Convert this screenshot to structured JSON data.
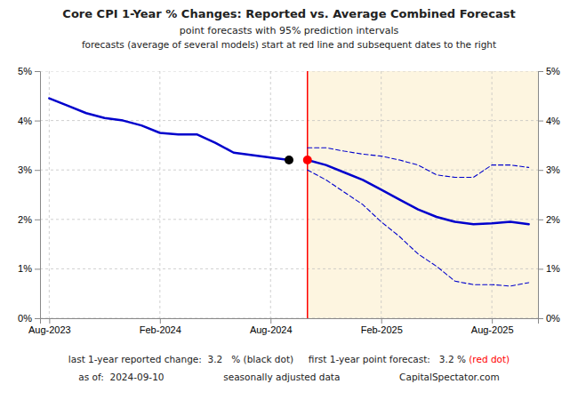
{
  "chart_data": {
    "type": "line",
    "title": "Core CPI 1-Year % Changes: Reported vs. Average Combined Forecast",
    "subtitle": [
      "point forecasts with 95% prediction intervals",
      "forecasts (average of several models) start at red line and subsequent dates to the right"
    ],
    "series": [
      {
        "type": "line",
        "line_style": "solid",
        "color": "#0000cc",
        "x": [
          0,
          1,
          2,
          3,
          4,
          5,
          6,
          7,
          8,
          9,
          10,
          11,
          12,
          13
        ],
        "values": [
          4.45,
          4.3,
          4.15,
          4.05,
          4.0,
          3.9,
          3.75,
          3.72,
          3.72,
          3.55,
          3.35,
          3.3,
          3.25,
          3.2
        ]
      },
      {
        "type": "line",
        "line_style": "solid",
        "color": "#0000cc",
        "x": [
          14,
          15,
          16,
          17,
          18,
          19,
          20,
          21,
          22,
          23,
          24,
          25,
          26
        ],
        "values": [
          3.2,
          3.1,
          2.95,
          2.8,
          2.6,
          2.4,
          2.2,
          2.05,
          1.95,
          1.9,
          1.92,
          1.95,
          1.9
        ]
      },
      {
        "type": "line",
        "line_style": "dashed",
        "color": "#0000cc",
        "x": [
          14,
          15,
          16,
          17,
          18,
          19,
          20,
          21,
          22,
          23,
          24,
          25,
          26
        ],
        "values": [
          3.45,
          3.45,
          3.38,
          3.32,
          3.28,
          3.2,
          3.1,
          2.9,
          2.85,
          2.85,
          3.1,
          3.1,
          3.05
        ]
      },
      {
        "type": "line",
        "line_style": "dashed",
        "color": "#0000cc",
        "x": [
          14,
          15,
          16,
          17,
          18,
          19,
          20,
          21,
          22,
          23,
          24,
          25,
          26
        ],
        "values": [
          3.0,
          2.8,
          2.55,
          2.3,
          1.95,
          1.65,
          1.3,
          1.05,
          0.75,
          0.68,
          0.68,
          0.65,
          0.72
        ]
      },
      {
        "type": "scatter",
        "marker": "circle",
        "color": "black",
        "x": [
          13
        ],
        "values": [
          3.2
        ]
      },
      {
        "type": "scatter",
        "marker": "circle",
        "color": "red",
        "x": [
          14
        ],
        "values": [
          3.2
        ]
      }
    ],
    "shaded_regions": [
      {
        "x": [
          14,
          26.5
        ],
        "color": "#fdf5e0"
      }
    ],
    "reference_lines": [
      {
        "x": 14,
        "color": "red"
      }
    ],
    "xlim": [
      -0.5,
      26.5
    ],
    "xticks": [
      {
        "value": 0,
        "label": "Aug-2023"
      },
      {
        "value": 6,
        "label": "Feb-2024"
      },
      {
        "value": 12,
        "label": "Aug-2024"
      },
      {
        "value": 18,
        "label": "Feb-2025"
      },
      {
        "value": 24,
        "label": "Aug-2025"
      }
    ],
    "ylim": [
      0,
      5.0
    ],
    "yticks": [
      {
        "value": 0,
        "label": "0%"
      },
      {
        "value": 1,
        "label": "1%"
      },
      {
        "value": 2,
        "label": "2%"
      },
      {
        "value": 3,
        "label": "3%"
      },
      {
        "value": 4,
        "label": "4%"
      },
      {
        "value": 5,
        "label": "5%"
      }
    ],
    "y2lim": [
      0,
      5.0
    ],
    "y2ticks": [
      {
        "value": 0,
        "label": "0%"
      },
      {
        "value": 1,
        "label": "1%"
      },
      {
        "value": 2,
        "label": "2%"
      },
      {
        "value": 3,
        "label": "3%"
      },
      {
        "value": 4,
        "label": "4%"
      },
      {
        "value": 5,
        "label": "5%"
      }
    ],
    "grid": true,
    "annotations": [
      [
        {
          "text": "last 1-year reported change:  3.2   % (black dot)     first 1-year point forecast:   3.2 % "
        },
        {
          "text": "(red dot)",
          "color": "red"
        }
      ],
      [
        {
          "text": "as of:  2024-09-10                    seasonally adjusted data                    CapitalSpectator.com"
        }
      ]
    ]
  }
}
